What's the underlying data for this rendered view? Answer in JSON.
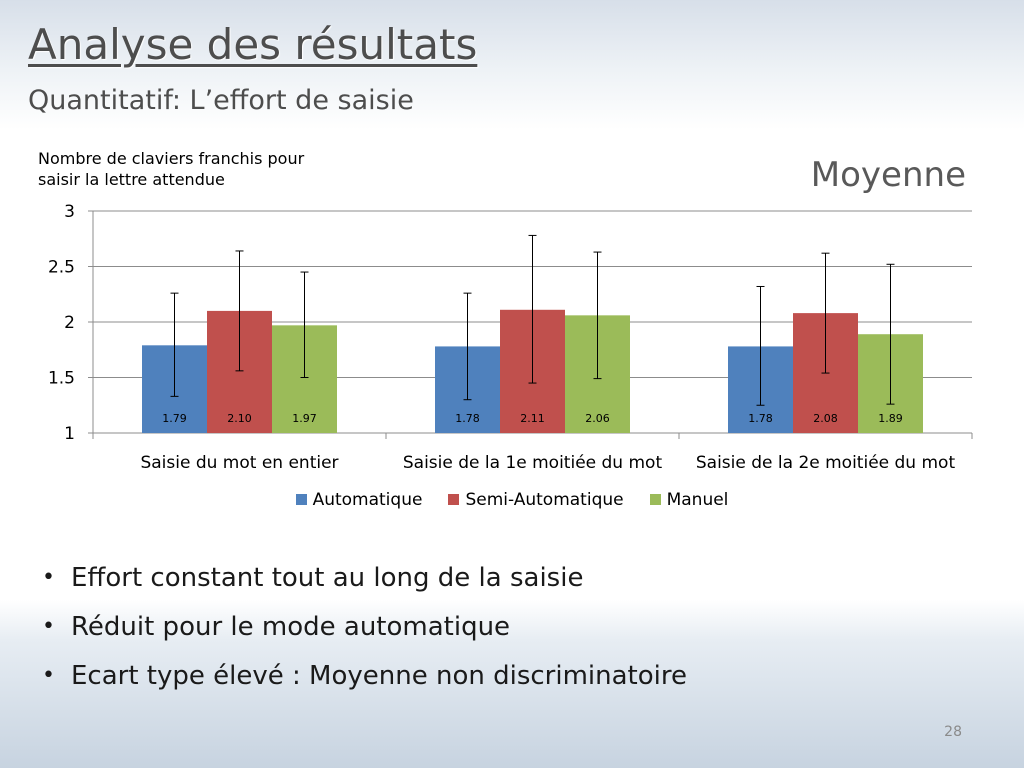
{
  "slide": {
    "title": "Analyse des résultats",
    "subtitle": "Quantitatif: L’effort de saisie",
    "side_label": "Moyenne",
    "bullets": [
      "Effort constant tout au long de la saisie",
      "Réduit pour le mode automatique",
      "Ecart type élevé : Moyenne non discriminatoire"
    ],
    "page_number": "28"
  },
  "chart_data": {
    "type": "bar",
    "ylabel": "Nombre de claviers franchis pour saisir la lettre attendue",
    "ylim": [
      1,
      3
    ],
    "yticks": [
      "1",
      "1.5",
      "2",
      "2.5",
      "3"
    ],
    "grid": true,
    "legend_position": "bottom",
    "categories": [
      "Saisie du mot en entier",
      "Saisie de la 1e moitiée du mot",
      "Saisie de la 2e moitiée du mot"
    ],
    "series": [
      {
        "name": "Automatique",
        "color": "#4f81bd",
        "values": [
          1.79,
          1.78,
          1.78
        ],
        "error_low": [
          1.33,
          1.3,
          1.25
        ],
        "error_high": [
          2.26,
          2.26,
          2.32
        ]
      },
      {
        "name": "Semi-Automatique",
        "color": "#c0504d",
        "values": [
          2.1,
          2.11,
          2.08
        ],
        "error_low": [
          1.56,
          1.45,
          1.54
        ],
        "error_high": [
          2.64,
          2.78,
          2.62
        ]
      },
      {
        "name": "Manuel",
        "color": "#9bbb59",
        "values": [
          1.97,
          2.06,
          1.89
        ],
        "error_low": [
          1.5,
          1.49,
          1.26
        ],
        "error_high": [
          2.45,
          2.63,
          2.52
        ]
      }
    ],
    "data_labels": [
      [
        "1.79",
        "1.78",
        "1.78"
      ],
      [
        "2.10",
        "2.11",
        "2.08"
      ],
      [
        "1.97",
        "2.06",
        "1.89"
      ]
    ]
  }
}
